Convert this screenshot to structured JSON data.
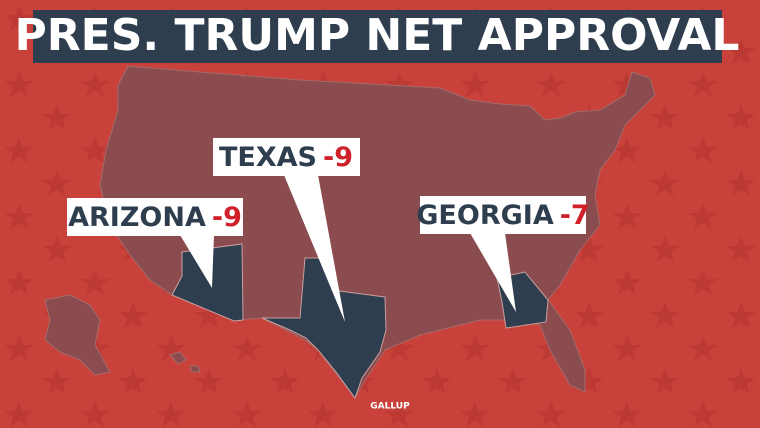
{
  "title": "PRES. TRUMP NET APPROVAL",
  "callouts": [
    {
      "state": "TEXAS",
      "value": -9
    },
    {
      "state": "ARIZONA",
      "value": -9
    },
    {
      "state": "GEORGIA",
      "value": -7
    }
  ],
  "source": "GALLUP"
}
